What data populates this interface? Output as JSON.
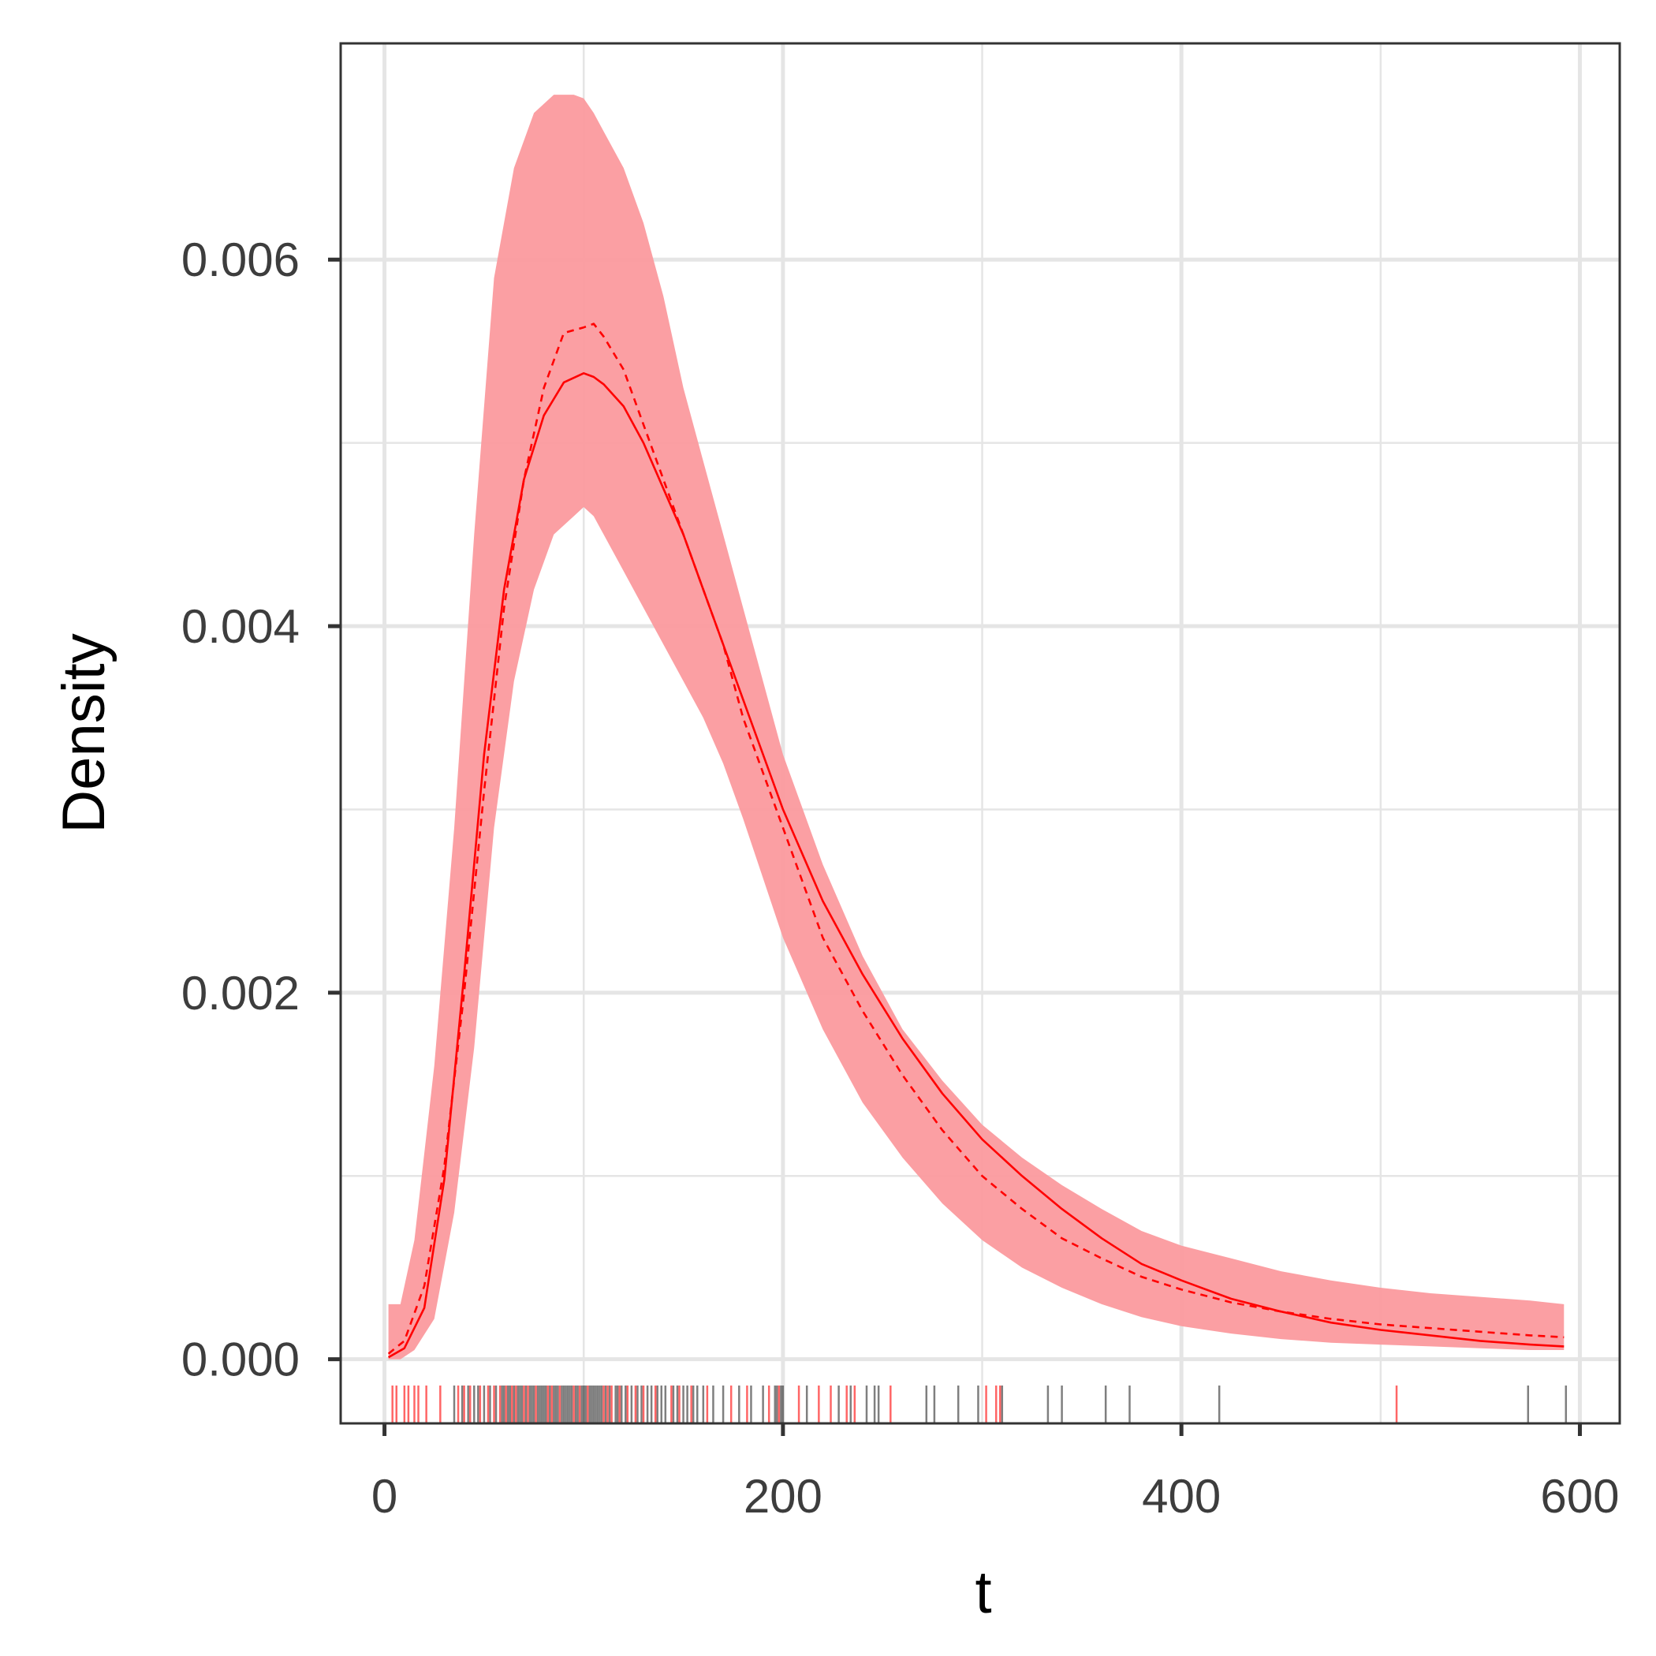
{
  "chart_data": {
    "type": "line",
    "title": "",
    "xlabel": "t",
    "ylabel": "Density",
    "xlim": [
      -22,
      620
    ],
    "ylim": [
      -0.00035,
      0.00718
    ],
    "x_ticks": [
      0,
      200,
      400,
      600
    ],
    "x_tick_labels": [
      "0",
      "200",
      "400",
      "600"
    ],
    "y_ticks": [
      0,
      0.002,
      0.004,
      0.006
    ],
    "y_tick_labels": [
      "0.000",
      "0.002",
      "0.004",
      "0.006"
    ],
    "grid": true,
    "legend": "none",
    "colors": {
      "band": "#fb9a9e",
      "line": "#ff0000",
      "rug_event": "#ff0000",
      "rug_censored": "#000000",
      "grid": "#e5e5e5",
      "frame": "#333333"
    },
    "series": [
      {
        "style": "solid",
        "x": [
          2,
          10,
          20,
          30,
          40,
          50,
          60,
          70,
          80,
          90,
          100,
          105,
          110,
          120,
          130,
          140,
          150,
          160,
          170,
          180,
          200,
          220,
          240,
          260,
          280,
          300,
          320,
          340,
          360,
          380,
          400,
          425,
          450,
          475,
          500,
          525,
          550,
          575,
          592
        ],
        "y": [
          1e-05,
          6e-05,
          0.00028,
          0.00098,
          0.0021,
          0.0033,
          0.0042,
          0.0048,
          0.00515,
          0.00533,
          0.00538,
          0.00536,
          0.00532,
          0.0052,
          0.005,
          0.00475,
          0.0045,
          0.0042,
          0.0039,
          0.0036,
          0.003,
          0.0025,
          0.0021,
          0.00175,
          0.00145,
          0.0012,
          0.001,
          0.00082,
          0.00066,
          0.00052,
          0.00043,
          0.00033,
          0.00026,
          0.0002,
          0.00016,
          0.00013,
          0.0001,
          8e-05,
          7e-05
        ]
      },
      {
        "style": "dashed",
        "x": [
          2,
          10,
          20,
          30,
          40,
          50,
          60,
          70,
          80,
          90,
          100,
          105,
          110,
          120,
          130,
          140,
          150,
          160,
          170,
          180,
          200,
          220,
          240,
          260,
          280,
          300,
          320,
          340,
          360,
          380,
          400,
          425,
          450,
          475,
          500,
          525,
          550,
          575,
          592
        ],
        "y": [
          3e-05,
          0.0001,
          0.0004,
          0.00105,
          0.002,
          0.0031,
          0.0041,
          0.0048,
          0.0053,
          0.0056,
          0.00563,
          0.00565,
          0.00558,
          0.0054,
          0.0051,
          0.0048,
          0.0045,
          0.0042,
          0.0039,
          0.0035,
          0.0029,
          0.0023,
          0.0019,
          0.00155,
          0.00125,
          0.001,
          0.00082,
          0.00066,
          0.00055,
          0.00045,
          0.00038,
          0.00031,
          0.00026,
          0.00022,
          0.00019,
          0.00017,
          0.00015,
          0.00013,
          0.00012
        ]
      }
    ],
    "band": {
      "x": [
        2,
        8,
        15,
        25,
        35,
        45,
        55,
        65,
        75,
        85,
        95,
        100,
        105,
        110,
        120,
        130,
        140,
        150,
        160,
        170,
        180,
        200,
        220,
        240,
        260,
        280,
        300,
        320,
        340,
        360,
        380,
        400,
        425,
        450,
        475,
        500,
        525,
        550,
        575,
        592
      ],
      "lower": [
        0.0,
        0.0,
        5e-05,
        0.00022,
        0.0008,
        0.0017,
        0.0029,
        0.0037,
        0.0042,
        0.0045,
        0.0046,
        0.00465,
        0.0046,
        0.0045,
        0.0043,
        0.0041,
        0.0039,
        0.0037,
        0.0035,
        0.00325,
        0.00295,
        0.0023,
        0.0018,
        0.0014,
        0.0011,
        0.00085,
        0.00065,
        0.0005,
        0.00039,
        0.0003,
        0.00023,
        0.00018,
        0.00014,
        0.00011,
        9e-05,
        8e-05,
        7e-05,
        6e-05,
        5e-05,
        5e-05
      ],
      "upper": [
        0.0003,
        0.0003,
        0.00065,
        0.0016,
        0.0029,
        0.0045,
        0.0059,
        0.0065,
        0.0068,
        0.0069,
        0.0069,
        0.00688,
        0.0068,
        0.0067,
        0.0065,
        0.0062,
        0.0058,
        0.0053,
        0.0049,
        0.0045,
        0.0041,
        0.0033,
        0.0027,
        0.0022,
        0.0018,
        0.00152,
        0.00128,
        0.0011,
        0.00095,
        0.00082,
        0.0007,
        0.00062,
        0.00055,
        0.00048,
        0.00043,
        0.00039,
        0.00036,
        0.00034,
        0.00032,
        0.0003
      ]
    },
    "rug_event_times": [
      4,
      6,
      10,
      12,
      15,
      17,
      21,
      28,
      37,
      40,
      43,
      48,
      52,
      55,
      58,
      61,
      64,
      66,
      70,
      72,
      76,
      82,
      84,
      88,
      95,
      98,
      102,
      110,
      112,
      114,
      118,
      122,
      126,
      130,
      136,
      144,
      148,
      154,
      162,
      174,
      182,
      193,
      198,
      208,
      218,
      224,
      232,
      236,
      254,
      302,
      307,
      309,
      508
    ],
    "rug_censored_times": [
      35,
      39,
      42,
      45,
      47,
      50,
      53,
      56,
      59,
      60,
      62,
      63,
      65,
      67,
      68,
      69,
      71,
      73,
      74,
      75,
      77,
      78,
      79,
      80,
      81,
      83,
      85,
      86,
      87,
      89,
      90,
      91,
      92,
      93,
      94,
      96,
      97,
      99,
      100,
      101,
      103,
      104,
      105,
      106,
      107,
      108,
      109,
      111,
      113,
      116,
      117,
      119,
      121,
      124,
      127,
      129,
      132,
      134,
      137,
      139,
      141,
      145,
      147,
      150,
      152,
      155,
      157,
      160,
      165,
      170,
      178,
      184,
      190,
      196,
      197,
      199,
      200,
      212,
      228,
      234,
      242,
      246,
      248,
      272,
      276,
      288,
      298,
      310,
      333,
      340,
      362,
      374,
      419,
      574,
      593
    ]
  }
}
